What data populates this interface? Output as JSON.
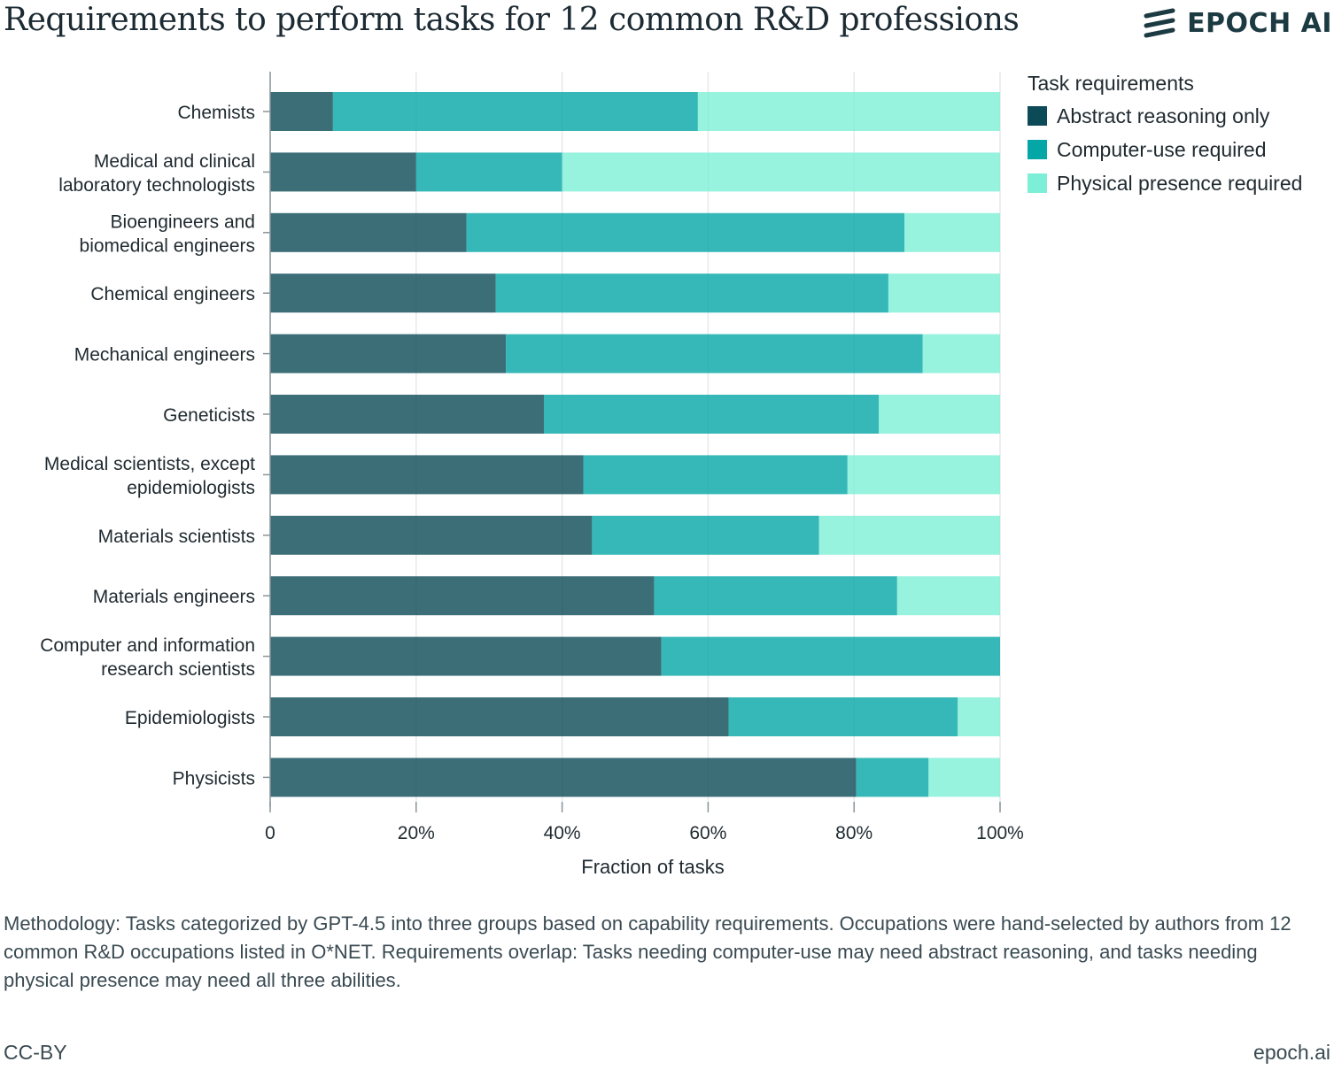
{
  "header": {
    "title": "Requirements to perform tasks for 12 common R&D professions",
    "logo_text": "EPOCH AI"
  },
  "chart_data": {
    "type": "bar",
    "orientation": "horizontal",
    "stacked": true,
    "categories": [
      [
        "Chemists"
      ],
      [
        "Medical and clinical",
        "laboratory technologists"
      ],
      [
        "Bioengineers and",
        "biomedical engineers"
      ],
      [
        "Chemical engineers"
      ],
      [
        "Mechanical engineers"
      ],
      [
        "Geneticists"
      ],
      [
        "Medical scientists, except",
        "epidemiologists"
      ],
      [
        "Materials scientists"
      ],
      [
        "Materials engineers"
      ],
      [
        "Computer and information",
        "research scientists"
      ],
      [
        "Epidemiologists"
      ],
      [
        "Physicists"
      ]
    ],
    "series": [
      {
        "name": "Abstract reasoning only",
        "color": "#0b4a56",
        "values": [
          8.6,
          20.0,
          26.9,
          30.9,
          32.3,
          37.5,
          42.9,
          44.1,
          52.6,
          53.6,
          62.8,
          80.3
        ]
      },
      {
        "name": "Computer-use required",
        "color": "#05a6a6",
        "values": [
          50.0,
          20.0,
          60.0,
          53.8,
          57.1,
          45.9,
          36.2,
          31.1,
          33.3,
          46.4,
          31.4,
          9.9
        ]
      },
      {
        "name": "Physical presence required",
        "color": "#7defd6",
        "values": [
          41.4,
          60.0,
          13.1,
          15.3,
          10.6,
          16.6,
          20.9,
          24.8,
          14.1,
          0.0,
          5.8,
          9.8
        ]
      }
    ],
    "xlabel": "Fraction of tasks",
    "xlim": [
      0,
      100
    ],
    "x_ticks": [
      "0",
      "20%",
      "40%",
      "60%",
      "80%",
      "100%"
    ],
    "x_tick_values": [
      0,
      20,
      40,
      60,
      80,
      100
    ],
    "grid": true,
    "legend_title": "Task requirements",
    "legend_position": "top-right"
  },
  "footer": {
    "methodology": "Methodology: Tasks categorized by GPT-4.5 into three groups based on capability requirements. Occupations were hand-selected by authors from 12 common R&D occupations listed in O*NET. Requirements overlap: Tasks needing computer-use may need abstract reasoning, and tasks needing physical presence may need all three abilities.",
    "license": "CC-BY",
    "site": "epoch.ai"
  }
}
